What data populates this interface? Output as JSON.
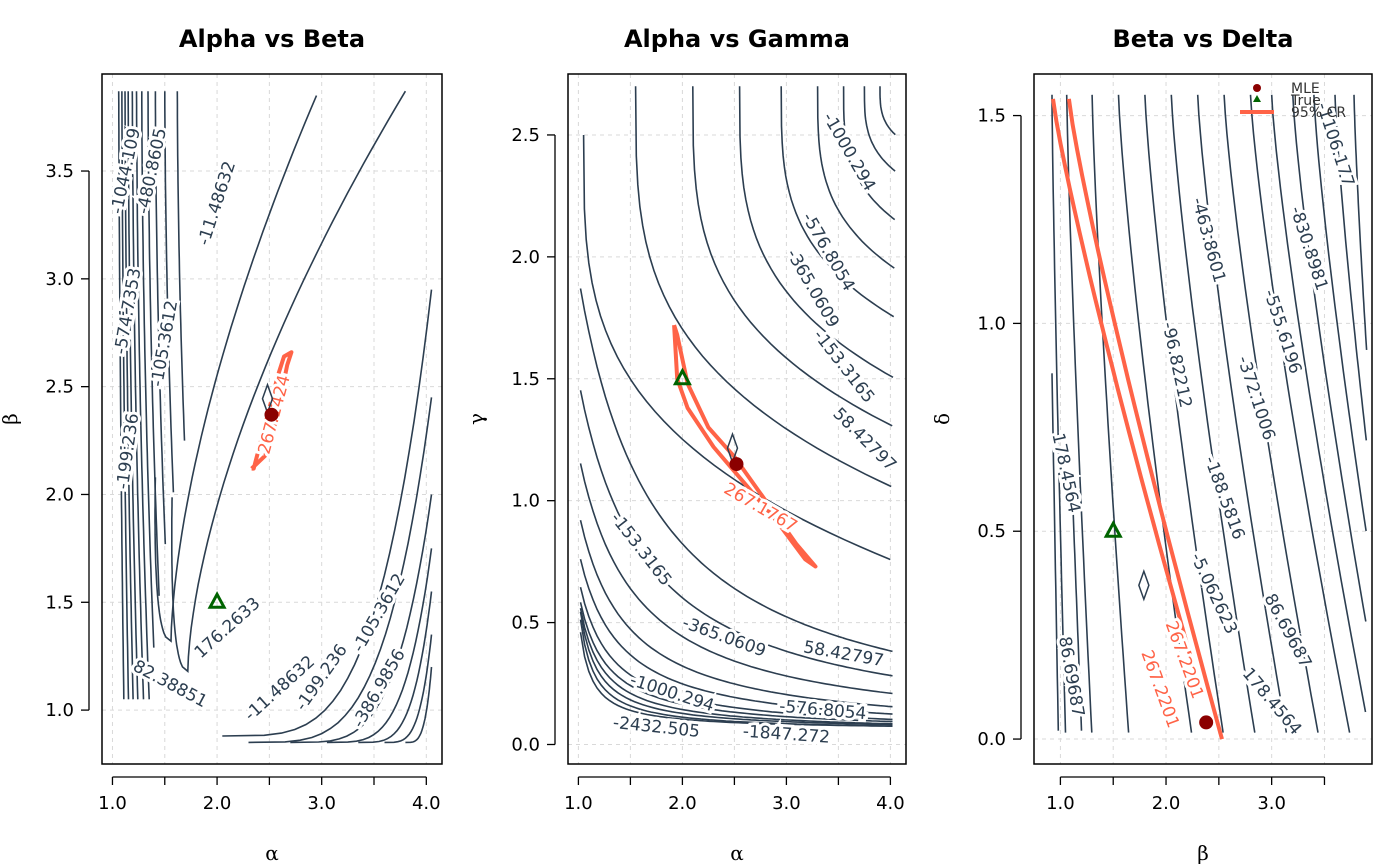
{
  "colors": {
    "contour": "#2c3e50",
    "confidence_region": "#ff6347",
    "mle": "#8b0000",
    "true": "#006400",
    "grid": "#d9d9d9"
  },
  "chart_data": [
    {
      "type": "contour",
      "title": "Alpha vs Beta",
      "xlabel": "α",
      "ylabel": "β",
      "xlim": [
        0.9,
        4.15
      ],
      "ylim": [
        0.75,
        3.95
      ],
      "x_ticks": [
        1.0,
        1.5,
        2.0,
        2.5,
        3.0,
        3.5,
        4.0
      ],
      "x_tick_labels": [
        "1.0",
        "",
        "2.0",
        "",
        "3.0",
        "",
        "4.0"
      ],
      "y_ticks": [
        1.0,
        1.5,
        2.0,
        2.5,
        3.0,
        3.5
      ],
      "y_tick_labels": [
        "1.0",
        "1.5",
        "2.0",
        "2.5",
        "3.0",
        "3.5"
      ],
      "grid": true,
      "contour_labels": [
        {
          "text": "-1044.109",
          "x": 1.13,
          "y": 3.5,
          "angle": -78
        },
        {
          "text": "-480.8605",
          "x": 1.38,
          "y": 3.5,
          "angle": -78
        },
        {
          "text": "-11.48632",
          "x": 2.0,
          "y": 3.35,
          "angle": -72
        },
        {
          "text": "-574.7353",
          "x": 1.15,
          "y": 2.85,
          "angle": -80
        },
        {
          "text": "-105.3612",
          "x": 1.5,
          "y": 2.7,
          "angle": -80
        },
        {
          "text": "-199.236",
          "x": 1.15,
          "y": 2.2,
          "angle": -82
        },
        {
          "text": "176.2633",
          "x": 2.1,
          "y": 1.38,
          "angle": -42
        },
        {
          "text": "82.38851",
          "x": 1.55,
          "y": 1.12,
          "angle": 28
        },
        {
          "text": "-11.48632",
          "x": 2.6,
          "y": 1.1,
          "angle": -42
        },
        {
          "text": "-199.236",
          "x": 3.0,
          "y": 1.15,
          "angle": -55
        },
        {
          "text": "-105.3612",
          "x": 3.55,
          "y": 1.45,
          "angle": -60
        },
        {
          "text": "-386.9856",
          "x": 3.55,
          "y": 1.1,
          "angle": -60
        }
      ],
      "confidence_label": {
        "text": "267.1424",
        "x": 2.55,
        "y": 2.37,
        "angle": -75
      },
      "mle": {
        "x": 2.52,
        "y": 2.37
      },
      "true": {
        "x": 2.0,
        "y": 1.5
      }
    },
    {
      "type": "contour",
      "title": "Alpha vs Gamma",
      "xlabel": "α",
      "ylabel": "γ",
      "xlim": [
        0.9,
        4.15
      ],
      "ylim": [
        -0.08,
        2.75
      ],
      "x_ticks": [
        1.0,
        1.5,
        2.0,
        2.5,
        3.0,
        3.5,
        4.0
      ],
      "x_tick_labels": [
        "1.0",
        "",
        "2.0",
        "",
        "3.0",
        "",
        "4.0"
      ],
      "y_ticks": [
        0.0,
        0.5,
        1.0,
        1.5,
        2.0,
        2.5
      ],
      "y_tick_labels": [
        "0.0",
        "0.5",
        "1.0",
        "1.5",
        "2.0",
        "2.5"
      ],
      "grid": true,
      "contour_labels": [
        {
          "text": "-1000.294",
          "x": 3.6,
          "y": 2.43,
          "angle": 60
        },
        {
          "text": "-576.8054",
          "x": 3.4,
          "y": 2.02,
          "angle": 60
        },
        {
          "text": "-365.0609",
          "x": 3.25,
          "y": 1.87,
          "angle": 60
        },
        {
          "text": "-153.3165",
          "x": 3.55,
          "y": 1.55,
          "angle": 52
        },
        {
          "text": "58.42797",
          "x": 3.75,
          "y": 1.25,
          "angle": 45
        },
        {
          "text": "-153.3165",
          "x": 1.6,
          "y": 0.8,
          "angle": 52
        },
        {
          "text": "-365.0609",
          "x": 2.4,
          "y": 0.44,
          "angle": 20
        },
        {
          "text": "58.42797",
          "x": 3.55,
          "y": 0.37,
          "angle": 10
        },
        {
          "text": "-1000.294",
          "x": 1.9,
          "y": 0.21,
          "angle": 18
        },
        {
          "text": "-576.8054",
          "x": 3.35,
          "y": 0.14,
          "angle": 5
        },
        {
          "text": "-2432.505",
          "x": 1.75,
          "y": 0.07,
          "angle": 6
        },
        {
          "text": "-1847.272",
          "x": 3.0,
          "y": 0.04,
          "angle": 4
        }
      ],
      "confidence_label": {
        "text": "267.1767",
        "x": 2.75,
        "y": 0.97,
        "angle": 30
      },
      "mle": {
        "x": 2.52,
        "y": 1.15
      },
      "true": {
        "x": 2.0,
        "y": 1.5
      }
    },
    {
      "type": "contour",
      "title": "Beta vs Delta",
      "xlabel": "β",
      "ylabel": "δ",
      "xlim": [
        0.75,
        3.95
      ],
      "ylim": [
        -0.06,
        1.6
      ],
      "x_ticks": [
        1.0,
        1.5,
        2.0,
        2.5,
        3.0,
        3.5
      ],
      "x_tick_labels": [
        "1.0",
        "",
        "2.0",
        "",
        "3.0",
        ""
      ],
      "y_ticks": [
        0.0,
        0.5,
        1.0,
        1.5
      ],
      "y_tick_labels": [
        "0.0",
        "0.5",
        "1.0",
        "1.5"
      ],
      "grid": true,
      "legend": {
        "position": "top-right",
        "entries": [
          "MLE",
          "True",
          "95% CR"
        ]
      },
      "contour_labels": [
        {
          "text": "-1106.177",
          "x": 3.6,
          "y": 1.43,
          "angle": 72
        },
        {
          "text": "-830.8981",
          "x": 3.35,
          "y": 1.18,
          "angle": 72
        },
        {
          "text": "-463.8601",
          "x": 2.4,
          "y": 1.2,
          "angle": 75
        },
        {
          "text": "-555.6196",
          "x": 3.1,
          "y": 0.98,
          "angle": 72
        },
        {
          "text": "-372.1006",
          "x": 2.85,
          "y": 0.82,
          "angle": 72
        },
        {
          "text": "-96.82212",
          "x": 2.1,
          "y": 0.9,
          "angle": 78
        },
        {
          "text": "-188.5816",
          "x": 2.55,
          "y": 0.58,
          "angle": 70
        },
        {
          "text": "-5.062623",
          "x": 2.45,
          "y": 0.35,
          "angle": 65
        },
        {
          "text": "86.69687",
          "x": 3.15,
          "y": 0.26,
          "angle": 62
        },
        {
          "text": "178.4564",
          "x": 3.0,
          "y": 0.09,
          "angle": 50
        },
        {
          "text": "178.4564",
          "x": 1.05,
          "y": 0.64,
          "angle": 78
        },
        {
          "text": "86.69687",
          "x": 1.1,
          "y": 0.15,
          "angle": 80
        }
      ],
      "confidence_labels": [
        {
          "text": "267.2201",
          "x": 2.17,
          "y": 0.19,
          "angle": 70
        },
        {
          "text": "267.2201",
          "x": 1.94,
          "y": 0.12,
          "angle": 70
        }
      ],
      "mle": {
        "x": 2.38,
        "y": 0.04
      },
      "true": {
        "x": 1.5,
        "y": 0.5
      }
    }
  ]
}
